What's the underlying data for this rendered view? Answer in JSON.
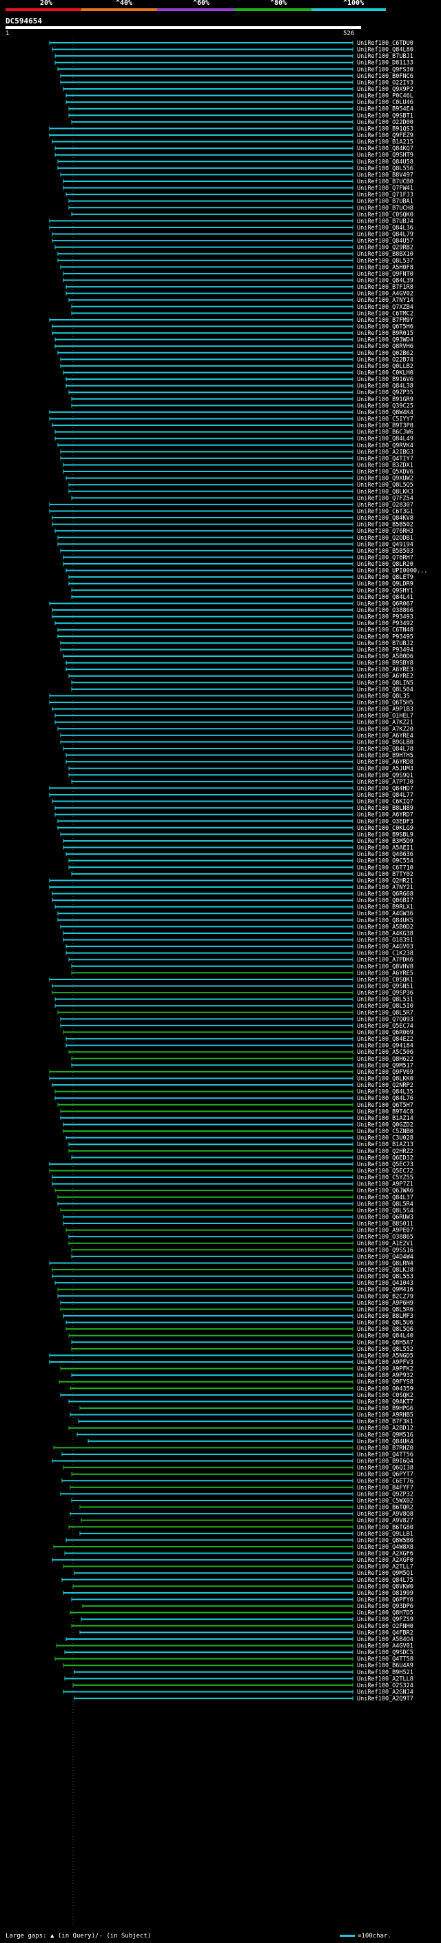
{
  "scale": {
    "ticks": [
      "20%",
      "^40%",
      "^60%",
      "^80%",
      "^100%"
    ],
    "colors": [
      "#e8131f",
      "#e8731f",
      "#9b3fd0",
      "#1fb21f",
      "#1ccad8"
    ]
  },
  "query": {
    "name": "DC594654",
    "start": "1",
    "end": "526"
  },
  "hits": [
    "UniRef100_C6TDU0",
    "UniRef100_Q84L80",
    "UniRef100_B7UBJ1",
    "UniRef100_D81133",
    "UniRef100_Q9FS30",
    "UniRef100_B0FNC6",
    "UniRef100_O22IY3",
    "UniRef100_Q9X9P2",
    "UniRef100_P0C46L",
    "UniRef100_C0LU46",
    "UniRef100_B954E4",
    "UniRef100_Q9SBT1",
    "UniRef100_O22D00",
    "UniRef100_B91QS3",
    "UniRef100_Q9FEZ9",
    "UniRef100_B1A215",
    "UniRef100_Q84KQ7",
    "UniRef100_Q9SHT9",
    "UniRef100_Q84U58",
    "UniRef100_Q8L556",
    "UniRef100_B8V497",
    "UniRef100_B7UCB0",
    "UniRef100_Q7FW41",
    "UniRef100_Q71FJ3",
    "UniRef100_B7UBA1",
    "UniRef100_B7UCH8",
    "UniRef100_C0SQK0",
    "UniRef100_B7UBJ4",
    "UniRef100_Q84L36",
    "UniRef100_Q84L79",
    "UniRef100_Q84U57",
    "UniRef100_Q29RB2",
    "UniRef100_B8BX10",
    "UniRef100_Q8L537",
    "UniRef100_A5H0F8",
    "UniRef100_Q9FNT0",
    "UniRef100_Q84L39",
    "UniRef100_B7F1R8",
    "UniRef100_A4GV02",
    "UniRef100_A7NY14",
    "UniRef100_Q7XZB4",
    "UniRef100_C6TMC2",
    "UniRef100_B7FM9Y",
    "UniRef100_Q6T5H6",
    "UniRef100_B9R015",
    "UniRef100_Q93WD4",
    "UniRef100_Q8RVH6",
    "UniRef100_Q02B62",
    "UniRef100_O22B74",
    "UniRef100_Q0LLB2",
    "UniRef100_C0KLH0",
    "UniRef100_B916V6",
    "UniRef100_Q84L38",
    "UniRef100_Q9ZP35",
    "UniRef100_B91GR9",
    "UniRef100_Q39C25",
    "UniRef100_Q8W4K4",
    "UniRef100_C5IYY7",
    "UniRef100_B9T3P8",
    "UniRef100_B6CJW6",
    "UniRef100_Q84L49",
    "UniRef100_Q9RVK4",
    "UniRef100_A2IBG3",
    "UniRef100_Q4TIY7",
    "UniRef100_B3ZDX1",
    "UniRef100_Q5XDV6",
    "UniRef100_Q9XUW2",
    "UniRef100_Q8L5Q5",
    "UniRef100_Q8LKK3",
    "UniRef100_Q7FZ54",
    "UniRef100_O28307",
    "UniRef100_C6T3G1",
    "UniRef100_Q84KV8",
    "UniRef100_B5B502",
    "UniRef100_Q76RH3",
    "UniRef100_Q2ODB1",
    "UniRef100_Q49194",
    "UniRef100_B5B503",
    "UniRef100_Q76RH7",
    "UniRef100_Q8LR20",
    "UniRef100_UPI0000...",
    "UniRef100_Q8LET9",
    "UniRef100_Q9LDR9",
    "UniRef100_Q9SHY1",
    "UniRef100_Q84L41",
    "UniRef100_Q6R067",
    "UniRef100_O38866",
    "UniRef100_P93493",
    "UniRef100_P93492",
    "UniRef100_C6TN48",
    "UniRef100_P93495",
    "UniRef100_B7UBJ2",
    "UniRef100_P93494",
    "UniRef100_A5B0D6",
    "UniRef100_B9SBY8",
    "UniRef100_A6YRE3",
    "UniRef100_A6YRE2",
    "UniRef100_Q8LIN5",
    "UniRef100_Q8L504",
    "UniRef100_Q8L35",
    "UniRef100_Q6T5H5",
    "UniRef100_A9P1B3",
    "UniRef100_O1HEL7",
    "UniRef100_A7KZ21",
    "UniRef100_A7KZ20",
    "UniRef100_A6YRE4",
    "UniRef100_B9GLB0",
    "UniRef100_Q84L78",
    "UniRef100_B9HTH5",
    "UniRef100_A6YRD8",
    "UniRef100_A5JUM3",
    "UniRef100_Q9S9Q1",
    "UniRef100_A7PTJ0",
    "UniRef100_Q84HD7",
    "UniRef100_Q84L77",
    "UniRef100_C6KIQ7",
    "UniRef100_B8LN89",
    "UniRef100_A6YRD7",
    "UniRef100_O3EDF3",
    "UniRef100_C0KLG9",
    "UniRef100_B9SBL9",
    "UniRef100_B3M5D9",
    "UniRef100_A5AEI1",
    "UniRef100_Q40636",
    "UniRef100_O9C554",
    "UniRef100_C6T710",
    "UniRef100_B7TY02",
    "UniRef100_Q2HR21",
    "UniRef100_A7NY21",
    "UniRef100_Q6RG68",
    "UniRef100_Q06BI7",
    "UniRef100_B9RLX1",
    "UniRef100_A4GW36",
    "UniRef100_Q84UK5",
    "UniRef100_A5B0D2",
    "UniRef100_A4KG38",
    "UniRef100_O18391",
    "UniRef100_A4GV03",
    "UniRef100_C1K238",
    "UniRef100_A7PDK6",
    "UniRef100_Q8VHV8",
    "UniRef100_A6YRE5",
    "UniRef100_C0SQK1",
    "UniRef100_Q9SN51",
    "UniRef100_Q9SP36",
    "UniRef100_Q8L531",
    "UniRef100_Q8L5I0",
    "UniRef100_Q8L5R7",
    "UniRef100_Q7Q093",
    "UniRef100_Q5EC74",
    "UniRef100_Q6R069",
    "UniRef100_Q84EZ2",
    "UniRef100_Q94184",
    "UniRef100_A5C506",
    "UniRef100_Q8H622",
    "UniRef100_Q9M517",
    "UniRef100_Q9FV69",
    "UniRef100_Q8LKK0",
    "UniRef100_Q2NRP2",
    "UniRef100_Q84L35",
    "UniRef100_Q84L76",
    "UniRef100_Q6T5H7",
    "UniRef100_B9T4C8",
    "UniRef100_B1AZ14",
    "UniRef100_Q0GZD2",
    "UniRef100_C5ZNB0",
    "UniRef100_C3U028",
    "UniRef100_B1AZ13",
    "UniRef100_Q2HRZ2",
    "UniRef100_Q6ED32",
    "UniRef100_Q5EC73",
    "UniRef100_Q5EC72",
    "UniRef100_C5YZ55",
    "UniRef100_A9P7Z1",
    "UniRef100_Q6JWA6",
    "UniRef100_Q84L37",
    "UniRef100_Q8L5R4",
    "UniRef100_Q8L5S4",
    "UniRef100_Q6RUW3",
    "UniRef100_B8S011",
    "UniRef100_A9PE07",
    "UniRef100_O38865",
    "UniRef100_A1E2V1",
    "UniRef100_Q9SS16",
    "UniRef100_Q4D4W4",
    "UniRef100_Q8LRN4",
    "UniRef100_Q8LKJ8",
    "UniRef100_Q8L553",
    "UniRef100_Q41043",
    "UniRef100_Q9M416",
    "UniRef100_B2CZ79",
    "UniRef100_A9P6H9",
    "UniRef100_Q8L5R6",
    "UniRef100_B8LMF3",
    "UniRef100_Q8L5U6",
    "UniRef100_Q8L5Q6",
    "UniRef100_Q84L40",
    "UniRef100_Q8H5A7",
    "UniRef100_Q8L552",
    "UniRef100_A5NGD5",
    "UniRef100_A9PFV3",
    "UniRef100_A9PFK2",
    "UniRef100_A9P932",
    "UniRef100_Q9FYS8",
    "UniRef100_O04359",
    "UniRef100_C0SQK2",
    "UniRef100_Q9AKT7",
    "UniRef100_B9HPG6",
    "UniRef100_A9RHB5",
    "UniRef100_B7F3K1",
    "UniRef100_A2BD12",
    "UniRef100_Q9M516",
    "UniRef100_Q84UK4",
    "UniRef100_B7RHZ0",
    "UniRef100_Q4TT56",
    "UniRef100_B9I6Q4",
    "UniRef100_Q6QI38",
    "UniRef100_Q6PYT7",
    "UniRef100_C6ET76",
    "UniRef100_B4FYF7",
    "UniRef100_Q9ZP32",
    "UniRef100_C5WX02",
    "UniRef100_B6TQR2",
    "UniRef100_A9V8Q8",
    "UniRef100_A9V827",
    "UniRef100_B6TG80",
    "UniRef100_Q9LLB1",
    "UniRef100_Q8W5B0",
    "UniRef100_Q4W8X8",
    "UniRef100_A2XGF6",
    "UniRef100_A2XGF0",
    "UniRef100_A2TLL7",
    "UniRef100_Q9M5Q1",
    "UniRef100_Q84L75",
    "UniRef100_Q8VKW0",
    "UniRef100_O81999",
    "UniRef100_Q6PFY6",
    "UniRef100_Q93DP6",
    "UniRef100_Q8H7D5",
    "UniRef100_Q9FZS9",
    "UniRef100_O2FNH0",
    "UniRef100_Q4FBR2",
    "UniRef100_A5B4O4",
    "UniRef100_A4GV01",
    "UniRef100_Q9SDC5",
    "UniRef100_Q4TT58",
    "UniRef100_B6U4A9",
    "UniRef100_B9H521",
    "UniRef100_A2TLL8",
    "UniRef100_O2S324",
    "UniRef100_A2GNJ4",
    "UniRef100_A2Q9T7"
  ],
  "footer": {
    "large_gaps": "Large gaps:",
    "gap_legend": "(in Query)/- (in Subject)",
    "scale_note": "=100char."
  }
}
